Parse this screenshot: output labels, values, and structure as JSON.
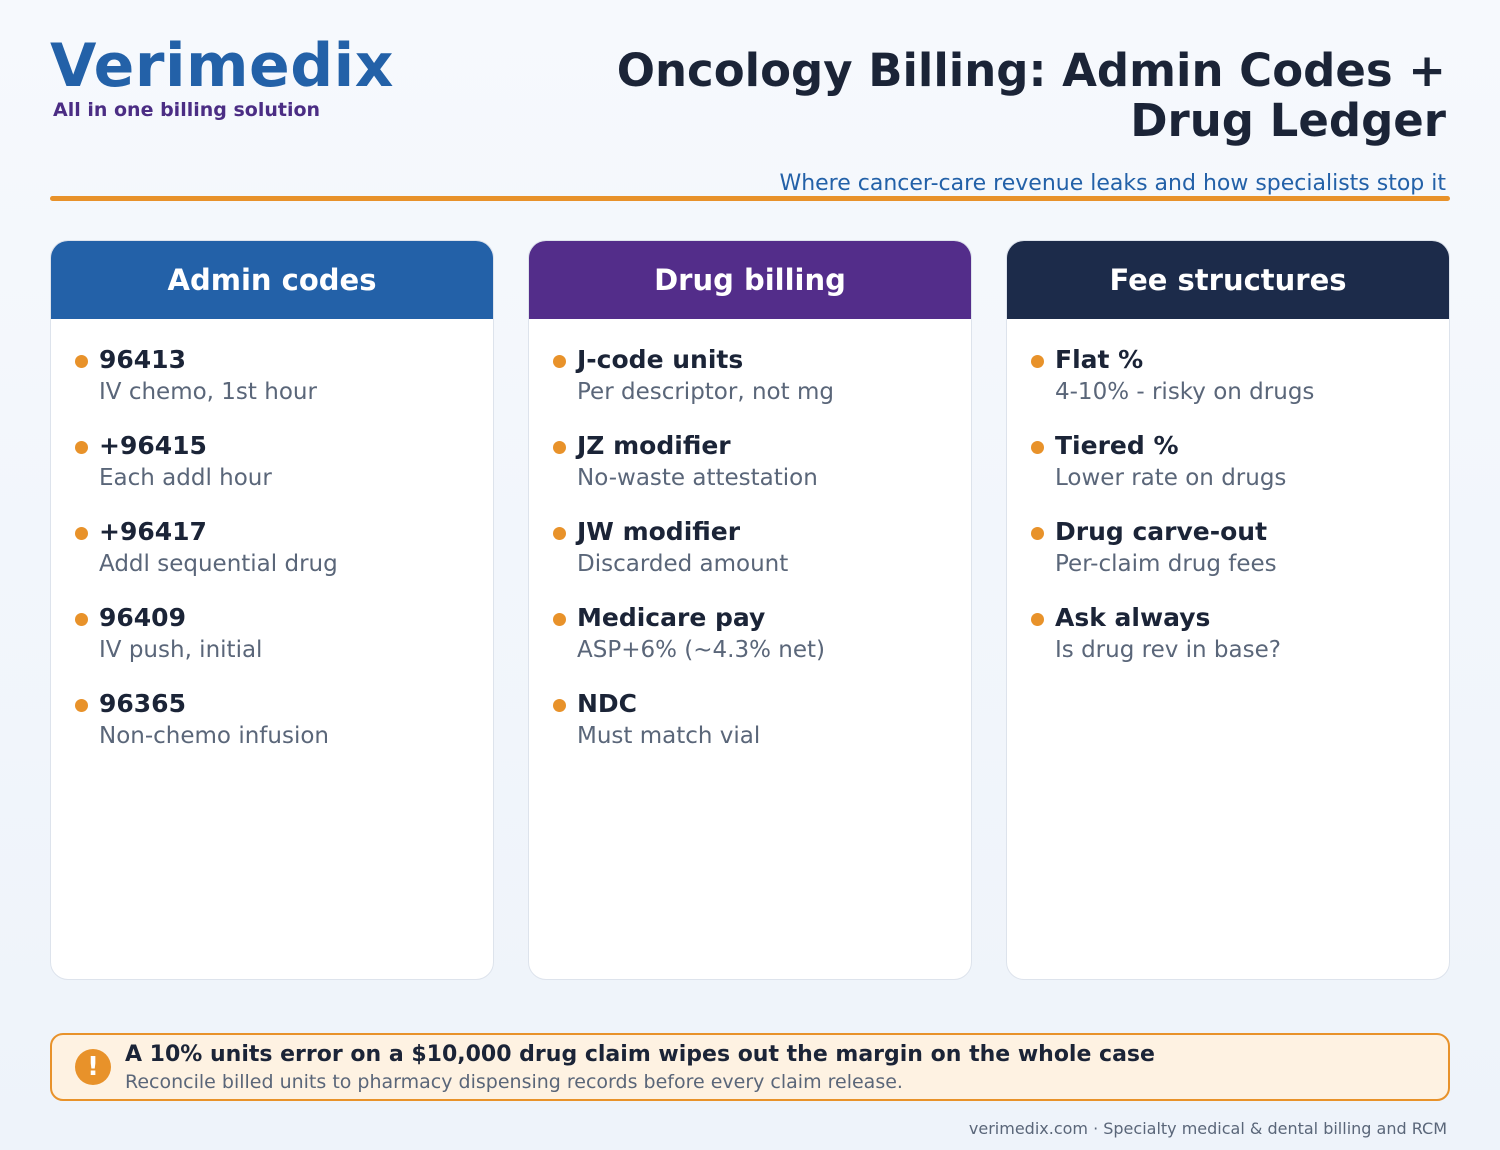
{
  "brand": {
    "name": "Verimedix",
    "tagline": "All in one billing solution"
  },
  "header": {
    "title": "Oncology Billing: Admin Codes + Drug Ledger",
    "subtitle": "Where cancer-care revenue leaks and how specialists stop it"
  },
  "colors": {
    "primary_blue": "#2361a8",
    "purple": "#532d8a",
    "navy": "#1c2b4a",
    "accent_orange": "#e8922a",
    "callout_bg": "#fef2e2"
  },
  "cards": [
    {
      "title": "Admin codes",
      "items": [
        {
          "title": "96413",
          "desc": "IV chemo, 1st hour"
        },
        {
          "title": "+96415",
          "desc": "Each addl hour"
        },
        {
          "title": "+96417",
          "desc": "Addl sequential drug"
        },
        {
          "title": "96409",
          "desc": "IV push, initial"
        },
        {
          "title": "96365",
          "desc": "Non-chemo infusion"
        }
      ]
    },
    {
      "title": "Drug billing",
      "items": [
        {
          "title": "J-code units",
          "desc": "Per descriptor, not mg"
        },
        {
          "title": "JZ modifier",
          "desc": "No-waste attestation"
        },
        {
          "title": "JW modifier",
          "desc": "Discarded amount"
        },
        {
          "title": "Medicare pay",
          "desc": "ASP+6% (~4.3% net)"
        },
        {
          "title": "NDC",
          "desc": "Must match vial"
        }
      ]
    },
    {
      "title": "Fee structures",
      "items": [
        {
          "title": "Flat %",
          "desc": "4-10% - risky on drugs"
        },
        {
          "title": "Tiered %",
          "desc": "Lower rate on drugs"
        },
        {
          "title": "Drug carve-out",
          "desc": "Per-claim drug fees"
        },
        {
          "title": "Ask always",
          "desc": "Is drug rev in base?"
        }
      ]
    }
  ],
  "callout": {
    "icon": "exclamation-icon",
    "icon_glyph": "!",
    "headline": "A 10% units error on a $10,000 drug claim wipes out the margin on the whole case",
    "subtext": "Reconcile billed units to pharmacy dispensing records before every claim release."
  },
  "footer": {
    "text": "verimedix.com · Specialty medical & dental billing and RCM"
  }
}
